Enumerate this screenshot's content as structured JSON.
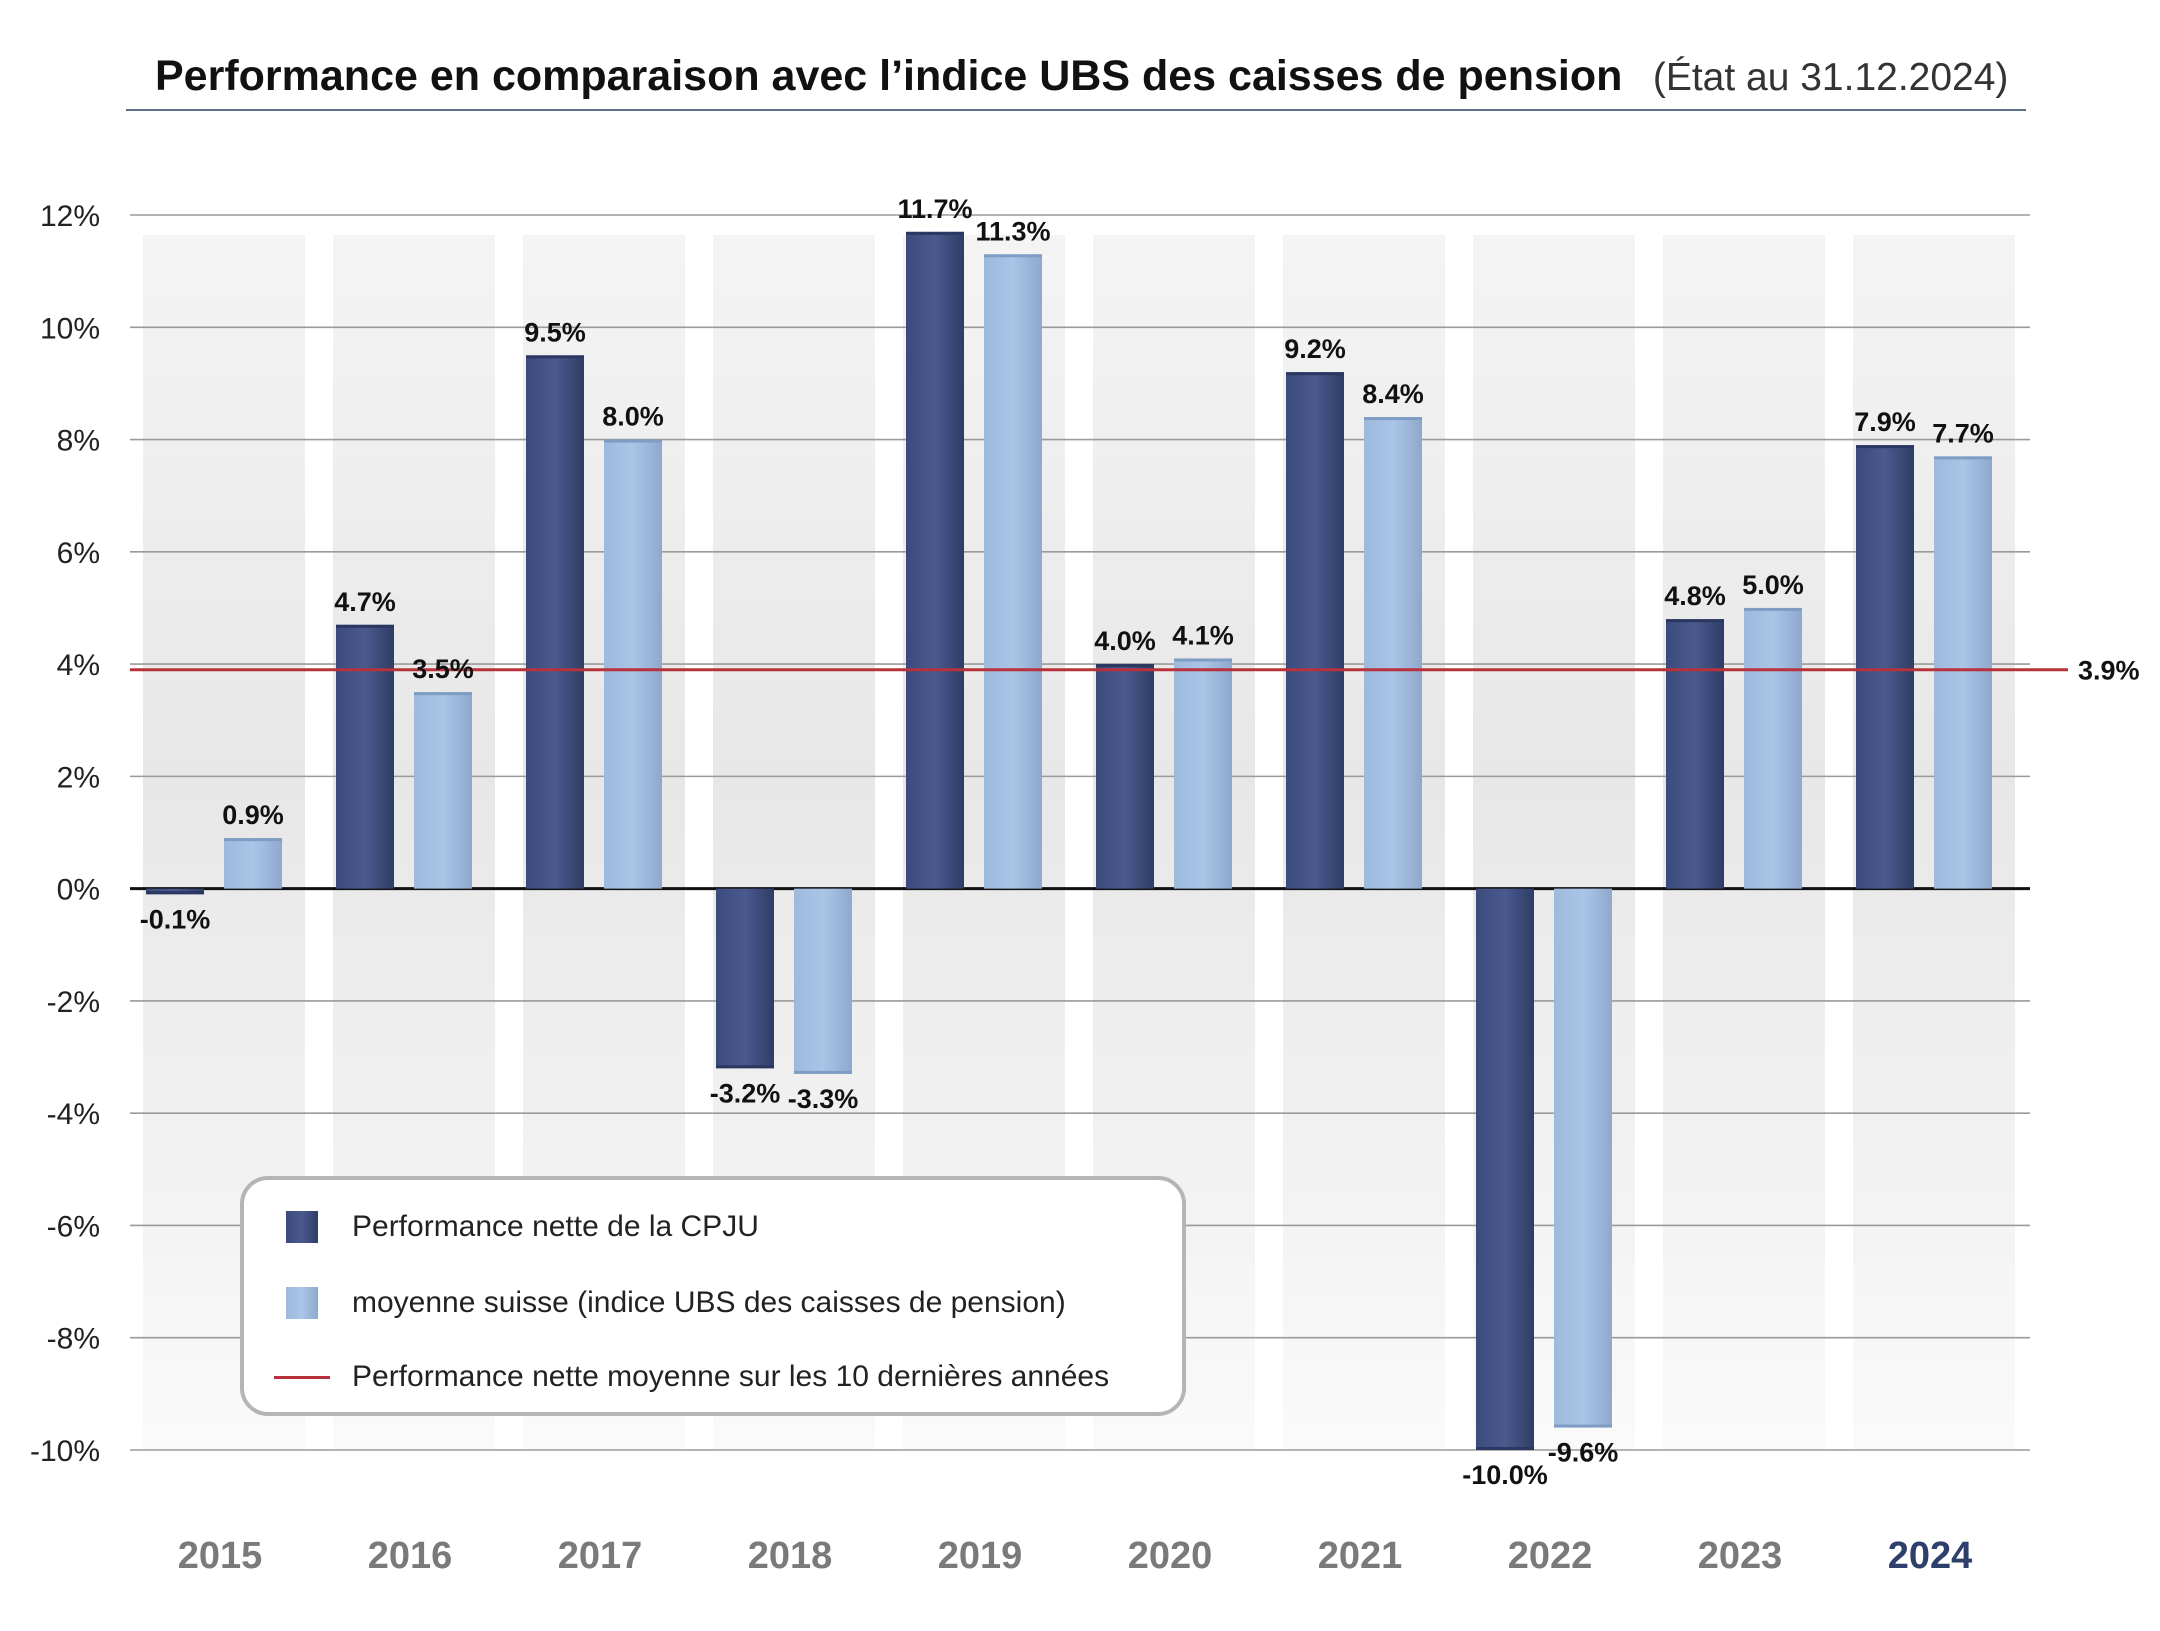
{
  "title": "Performance en comparaison avec l’indice UBS des caisses de pension",
  "subtitle": "(État au 31.12.2024)",
  "chart_data": {
    "type": "bar",
    "categories": [
      "2015",
      "2016",
      "2017",
      "2018",
      "2019",
      "2020",
      "2021",
      "2022",
      "2023",
      "2024"
    ],
    "highlight_category": "2024",
    "series": [
      {
        "name": "Performance nette de la CPJU",
        "values": [
          -0.1,
          4.7,
          9.5,
          -3.2,
          11.7,
          4.0,
          9.2,
          -10.0,
          4.8,
          7.9
        ],
        "labels": [
          "-0.1%",
          "4.7%",
          "9.5%",
          "-3.2%",
          "11.7%",
          "4.0%",
          "9.2%",
          "-10.0%",
          "4.8%",
          "7.9%"
        ],
        "color": "#46568a"
      },
      {
        "name": "moyenne suisse (indice UBS des caisses de pension)",
        "values": [
          0.9,
          3.5,
          8.0,
          -3.3,
          11.3,
          4.1,
          8.4,
          -9.6,
          5.0,
          7.7
        ],
        "labels": [
          "0.9%",
          "3.5%",
          "8.0%",
          "-3.3%",
          "11.3%",
          "4.1%",
          "8.4%",
          "-9.6%",
          "5.0%",
          "7.7%"
        ],
        "color": "#a7c2e3"
      }
    ],
    "reference_line": {
      "name": "Performance nette moyenne sur les 10 dernières années",
      "value": 3.9,
      "label": "3.9%",
      "color": "#b7323a"
    },
    "ylim": [
      -10,
      12
    ],
    "yticks": [
      12,
      10,
      8,
      6,
      4,
      2,
      0,
      -2,
      -4,
      -6,
      -8,
      -10
    ],
    "ytick_labels": [
      "12%",
      "10%",
      "8%",
      "6%",
      "4%",
      "2%",
      "0%",
      "-2%",
      "-4%",
      "-6%",
      "-8%",
      "-10%"
    ],
    "grid": true,
    "legend_position": "bottom-left",
    "xlabel": "",
    "ylabel": ""
  }
}
